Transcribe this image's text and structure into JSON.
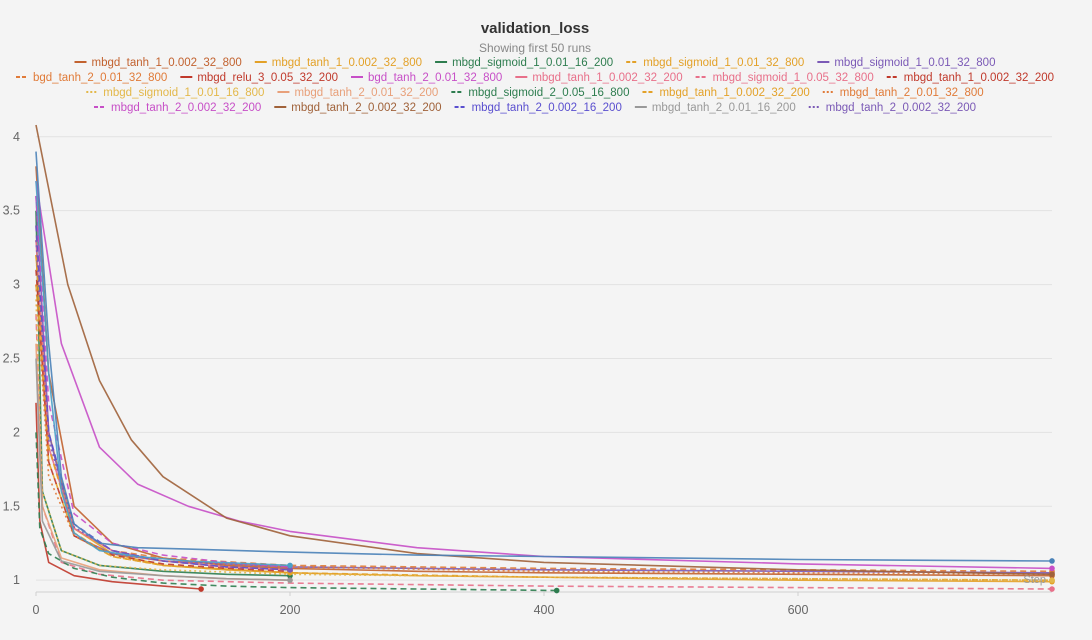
{
  "chart_data": {
    "type": "line",
    "title": "validation_loss",
    "subtitle": "Showing first 50 runs",
    "xlabel": "Step",
    "ylabel": "",
    "xlim": [
      0,
      800
    ],
    "ylim": [
      0.92,
      4.1
    ],
    "xticks": [
      0,
      200,
      400,
      600
    ],
    "yticks": [
      1,
      1.5,
      2,
      2.5,
      3,
      3.5,
      4
    ],
    "grid": true,
    "legend_position": "top",
    "series": [
      {
        "name": "mbgd_tanh_1_0.002_32_800",
        "color": "#c2622f",
        "dash": "solid",
        "x": [
          0,
          10,
          30,
          60,
          100,
          150,
          200,
          300,
          400,
          600,
          800
        ],
        "y": [
          3.8,
          2.4,
          1.5,
          1.25,
          1.15,
          1.1,
          1.08,
          1.06,
          1.05,
          1.04,
          1.03
        ]
      },
      {
        "name": "mbgd_tanh_1_0.002_32_800",
        "color": "#e3a128",
        "dash": "solid",
        "x": [
          0,
          10,
          30,
          60,
          100,
          150,
          200,
          300,
          400,
          600,
          800
        ],
        "y": [
          3.2,
          2.0,
          1.35,
          1.18,
          1.1,
          1.07,
          1.05,
          1.03,
          1.02,
          1.0,
          0.99
        ]
      },
      {
        "name": "mbgd_sigmoid_1_0.01_16_200",
        "color": "#2e7d4f",
        "dash": "solid",
        "x": [
          0,
          5,
          20,
          50,
          100,
          150,
          200
        ],
        "y": [
          3.5,
          1.6,
          1.2,
          1.1,
          1.06,
          1.04,
          1.03
        ]
      },
      {
        "name": "mbgd_sigmoid_1_0.01_32_800",
        "color": "#e3a128",
        "dash": "dashed",
        "x": [
          0,
          10,
          30,
          60,
          100,
          200,
          400,
          600,
          800
        ],
        "y": [
          3.0,
          1.8,
          1.3,
          1.16,
          1.1,
          1.05,
          1.02,
          1.01,
          1.0
        ]
      },
      {
        "name": "mbgd_sigmoid_1_0.01_32_800",
        "color": "#7b5ab6",
        "dash": "solid",
        "x": [
          0,
          10,
          30,
          60,
          100,
          200,
          400,
          600,
          800
        ],
        "y": [
          3.6,
          2.0,
          1.3,
          1.18,
          1.13,
          1.09,
          1.07,
          1.06,
          1.05
        ]
      },
      {
        "name": "bgd_tanh_2_0.01_32_800",
        "color": "#e07b39",
        "dash": "dashed",
        "x": [
          0,
          10,
          30,
          60,
          100,
          200,
          400,
          600,
          800
        ],
        "y": [
          3.4,
          1.9,
          1.35,
          1.2,
          1.15,
          1.1,
          1.08,
          1.07,
          1.06
        ]
      },
      {
        "name": "mbgd_relu_3_0.05_32_200",
        "color": "#c0392b",
        "dash": "solid",
        "x": [
          0,
          3,
          10,
          30,
          60,
          100,
          130
        ],
        "y": [
          2.2,
          1.4,
          1.12,
          1.03,
          0.99,
          0.96,
          0.94
        ]
      },
      {
        "name": "bgd_tanh_2_0.01_32_800",
        "color": "#c74fc7",
        "dash": "solid",
        "x": [
          0,
          20,
          50,
          80,
          120,
          160,
          200,
          300,
          400,
          600,
          800
        ],
        "y": [
          3.7,
          2.6,
          1.9,
          1.65,
          1.5,
          1.4,
          1.33,
          1.22,
          1.16,
          1.11,
          1.08
        ]
      },
      {
        "name": "mbgd_tanh_1_0.002_32_200",
        "color": "#e8708a",
        "dash": "solid",
        "x": [
          0,
          10,
          30,
          60,
          100,
          150,
          200
        ],
        "y": [
          3.3,
          1.9,
          1.35,
          1.2,
          1.13,
          1.09,
          1.07
        ]
      },
      {
        "name": "mbgd_sigmoid_1_0.05_32_800",
        "color": "#e8708a",
        "dash": "dashed",
        "x": [
          0,
          5,
          20,
          50,
          100,
          200,
          400,
          600,
          800
        ],
        "y": [
          2.8,
          1.5,
          1.12,
          1.04,
          1.0,
          0.98,
          0.96,
          0.95,
          0.94
        ]
      },
      {
        "name": "mbgd_tanh_1_0.002_32_200",
        "color": "#c0392b",
        "dash": "dashed",
        "x": [
          0,
          10,
          30,
          60,
          100,
          150,
          200
        ],
        "y": [
          3.1,
          1.8,
          1.3,
          1.17,
          1.11,
          1.08,
          1.06
        ]
      },
      {
        "name": "mbgd_sigmoid_1_0.01_16_800",
        "color": "#e3b84a",
        "dash": "dotted",
        "x": [
          0,
          5,
          20,
          50,
          100,
          200,
          400,
          600,
          800
        ],
        "y": [
          2.9,
          1.6,
          1.2,
          1.1,
          1.07,
          1.04,
          1.02,
          1.01,
          1.0
        ]
      },
      {
        "name": "mbgd_tanh_2_0.01_32_200",
        "color": "#e8a07a",
        "dash": "solid",
        "x": [
          0,
          5,
          20,
          50,
          100,
          150,
          200
        ],
        "y": [
          2.6,
          1.5,
          1.15,
          1.07,
          1.03,
          1.01,
          1.0
        ]
      },
      {
        "name": "mbgd_sigmoid_2_0.05_16_800",
        "color": "#2e7d4f",
        "dash": "dashed",
        "x": [
          0,
          3,
          10,
          30,
          60,
          100,
          150,
          200,
          300,
          410
        ],
        "y": [
          2.0,
          1.35,
          1.18,
          1.08,
          1.02,
          0.98,
          0.96,
          0.95,
          0.94,
          0.93
        ]
      },
      {
        "name": "mbgd_tanh_1_0.002_32_200",
        "color": "#e3a128",
        "dash": "dashed",
        "x": [
          0,
          10,
          30,
          60,
          100,
          150,
          200
        ],
        "y": [
          3.2,
          1.9,
          1.32,
          1.16,
          1.1,
          1.07,
          1.05
        ]
      },
      {
        "name": "mbgd_tanh_2_0.01_32_800",
        "color": "#e07b39",
        "dash": "dotted",
        "x": [
          0,
          10,
          30,
          60,
          100,
          200,
          400,
          600,
          800
        ],
        "y": [
          3.0,
          1.7,
          1.3,
          1.18,
          1.13,
          1.09,
          1.06,
          1.05,
          1.04
        ]
      },
      {
        "name": "mbgd_tanh_2_0.002_32_200",
        "color": "#c74fc7",
        "dash": "dashed",
        "x": [
          0,
          10,
          30,
          60,
          100,
          150,
          200
        ],
        "y": [
          3.6,
          2.2,
          1.45,
          1.25,
          1.17,
          1.12,
          1.09
        ]
      },
      {
        "name": "mbgd_tanh_2_0.002_32_200",
        "color": "#a0623a",
        "dash": "solid",
        "x": [
          0,
          25,
          50,
          75,
          100,
          150,
          200,
          300,
          400,
          600,
          800
        ],
        "y": [
          4.08,
          3.0,
          2.35,
          1.95,
          1.7,
          1.42,
          1.3,
          1.18,
          1.12,
          1.07,
          1.04
        ]
      },
      {
        "name": "mbgd_tanh_2_0.002_16_200",
        "color": "#5a4fcf",
        "dash": "dashed",
        "x": [
          0,
          10,
          30,
          60,
          100,
          150,
          200
        ],
        "y": [
          3.4,
          2.0,
          1.38,
          1.2,
          1.13,
          1.09,
          1.07
        ]
      },
      {
        "name": "mbgd_tanh_2_0.01_16_200",
        "color": "#999999",
        "dash": "solid",
        "x": [
          0,
          5,
          20,
          50,
          100,
          150,
          200
        ],
        "y": [
          2.5,
          1.4,
          1.13,
          1.06,
          1.03,
          1.01,
          1.0
        ]
      },
      {
        "name": "mbgd_tanh_2_0.002_32_200",
        "color": "#7b5ab6",
        "dash": "dotted",
        "x": [
          0,
          10,
          30,
          60,
          100,
          150,
          200
        ],
        "y": [
          3.3,
          1.95,
          1.36,
          1.2,
          1.13,
          1.09,
          1.07
        ]
      },
      {
        "name": "",
        "color": "#4a82b8",
        "dash": "solid",
        "x": [
          0,
          10,
          20,
          30,
          50,
          80,
          120,
          200,
          300,
          400,
          600,
          800
        ],
        "y": [
          3.9,
          2.6,
          1.7,
          1.38,
          1.25,
          1.22,
          1.21,
          1.19,
          1.17,
          1.16,
          1.14,
          1.13
        ]
      },
      {
        "name": "",
        "color": "#4aa0c8",
        "dash": "solid",
        "x": [
          0,
          10,
          20,
          30,
          50,
          80,
          120,
          200
        ],
        "y": [
          3.7,
          2.4,
          1.6,
          1.32,
          1.2,
          1.16,
          1.13,
          1.1
        ]
      }
    ],
    "legend_rows": [
      [
        0,
        1,
        2,
        3,
        4
      ],
      [
        5,
        6,
        7,
        8,
        9,
        10
      ],
      [
        11,
        12,
        13,
        14,
        15
      ],
      [
        16,
        17,
        18,
        19,
        20
      ]
    ]
  }
}
